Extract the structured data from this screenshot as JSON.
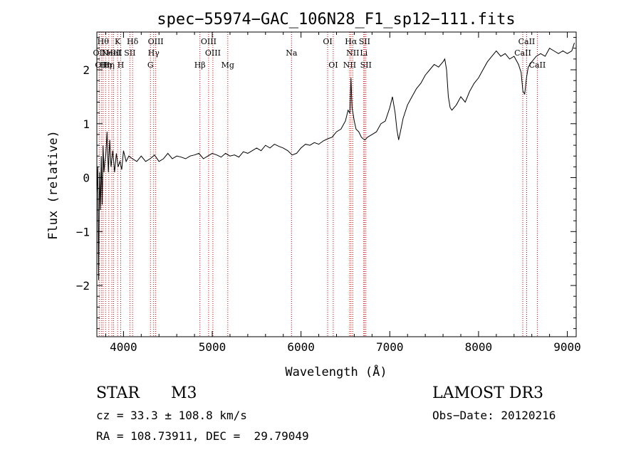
{
  "chart_data": {
    "type": "line",
    "title": "spec−55974−GAC_106N28_F1_sp12−111.fits",
    "xlabel": "Wavelength (Å)",
    "ylabel": "Flux (relative)",
    "xlim": [
      3700,
      9100
    ],
    "ylim": [
      -2.95,
      2.7
    ],
    "xticks": [
      4000,
      5000,
      6000,
      7000,
      8000,
      9000
    ],
    "xtick_labels": [
      "4000",
      "5000",
      "6000",
      "7000",
      "8000",
      "9000"
    ],
    "yticks": [
      -2,
      -1,
      0,
      1,
      2
    ],
    "ytick_labels": [
      "−2",
      "−1",
      "0",
      "1",
      "2"
    ],
    "line_color": "#000000",
    "line_marker_color": "#cc0000",
    "spectrum": {
      "name": "flux",
      "x": [
        3700,
        3710,
        3720,
        3730,
        3740,
        3750,
        3760,
        3770,
        3780,
        3790,
        3800,
        3815,
        3830,
        3845,
        3860,
        3880,
        3900,
        3920,
        3940,
        3960,
        3980,
        4000,
        4030,
        4060,
        4100,
        4150,
        4200,
        4250,
        4300,
        4350,
        4400,
        4450,
        4500,
        4550,
        4600,
        4650,
        4700,
        4750,
        4800,
        4850,
        4900,
        4950,
        5000,
        5050,
        5100,
        5150,
        5200,
        5250,
        5300,
        5350,
        5400,
        5450,
        5500,
        5550,
        5600,
        5650,
        5700,
        5750,
        5800,
        5850,
        5900,
        5950,
        6000,
        6050,
        6100,
        6150,
        6200,
        6250,
        6300,
        6350,
        6400,
        6450,
        6500,
        6530,
        6550,
        6563,
        6575,
        6600,
        6620,
        6650,
        6680,
        6700,
        6720,
        6750,
        6800,
        6850,
        6900,
        6950,
        7000,
        7030,
        7060,
        7080,
        7100,
        7120,
        7150,
        7200,
        7250,
        7300,
        7350,
        7400,
        7450,
        7500,
        7550,
        7600,
        7620,
        7640,
        7660,
        7680,
        7700,
        7750,
        7800,
        7850,
        7900,
        7950,
        8000,
        8050,
        8100,
        8150,
        8200,
        8250,
        8300,
        8350,
        8400,
        8450,
        8480,
        8500,
        8520,
        8540,
        8560,
        8600,
        8650,
        8700,
        8750,
        8800,
        8850,
        8900,
        8950,
        9000,
        9050,
        9080
      ],
      "y": [
        -0.3,
        0.2,
        -1.9,
        0.1,
        -0.6,
        0.4,
        -0.5,
        0.6,
        0.1,
        0.3,
        0.4,
        0.85,
        0.1,
        0.7,
        0.2,
        0.5,
        0.1,
        0.45,
        0.2,
        0.3,
        0.15,
        0.5,
        0.3,
        0.4,
        0.35,
        0.3,
        0.4,
        0.3,
        0.35,
        0.42,
        0.3,
        0.35,
        0.45,
        0.35,
        0.4,
        0.38,
        0.35,
        0.4,
        0.42,
        0.45,
        0.35,
        0.4,
        0.45,
        0.42,
        0.38,
        0.45,
        0.4,
        0.42,
        0.38,
        0.48,
        0.45,
        0.5,
        0.55,
        0.5,
        0.6,
        0.55,
        0.62,
        0.58,
        0.55,
        0.5,
        0.42,
        0.45,
        0.55,
        0.62,
        0.6,
        0.65,
        0.62,
        0.68,
        0.72,
        0.75,
        0.85,
        0.9,
        1.05,
        1.25,
        1.2,
        1.85,
        1.3,
        1.05,
        0.9,
        0.85,
        0.75,
        0.72,
        0.7,
        0.75,
        0.8,
        0.85,
        1.0,
        1.05,
        1.3,
        1.5,
        1.2,
        0.9,
        0.7,
        0.85,
        1.1,
        1.35,
        1.5,
        1.65,
        1.75,
        1.9,
        2.0,
        2.1,
        2.05,
        2.15,
        2.2,
        2.0,
        1.5,
        1.3,
        1.25,
        1.35,
        1.5,
        1.4,
        1.6,
        1.75,
        1.85,
        2.0,
        2.15,
        2.25,
        2.35,
        2.25,
        2.3,
        2.2,
        2.25,
        2.1,
        1.95,
        1.6,
        1.55,
        1.85,
        2.05,
        2.15,
        2.25,
        2.3,
        2.25,
        2.4,
        2.35,
        2.3,
        2.35,
        2.3,
        2.35,
        2.5
      ]
    },
    "line_markers": [
      {
        "x": 3727,
        "label": "OII",
        "row": 1
      },
      {
        "x": 3750,
        "label": "OII",
        "row": 2
      },
      {
        "x": 3770,
        "label": "Hθ",
        "row": 0
      },
      {
        "x": 3798,
        "label": "Hη",
        "row": 2
      },
      {
        "x": 3835,
        "label": "Hη",
        "row": 2
      },
      {
        "x": 3869,
        "label": "NeIII",
        "row": 1
      },
      {
        "x": 3889,
        "label": "HeI",
        "row": 1
      },
      {
        "x": 3934,
        "label": "K",
        "row": 0
      },
      {
        "x": 3969,
        "label": "H",
        "row": 2
      },
      {
        "x": 4072,
        "label": "SII",
        "row": 1
      },
      {
        "x": 4102,
        "label": "Hδ",
        "row": 0
      },
      {
        "x": 4304,
        "label": "G",
        "row": 2
      },
      {
        "x": 4340,
        "label": "Hγ",
        "row": 1
      },
      {
        "x": 4363,
        "label": "OIII",
        "row": 0
      },
      {
        "x": 4861,
        "label": "Hβ",
        "row": 2
      },
      {
        "x": 4959,
        "label": "OIII",
        "row": 0
      },
      {
        "x": 5007,
        "label": "OIII",
        "row": 1
      },
      {
        "x": 5175,
        "label": "Mg",
        "row": 2
      },
      {
        "x": 5893,
        "label": "Na",
        "row": 1
      },
      {
        "x": 6300,
        "label": "OI",
        "row": 0
      },
      {
        "x": 6363,
        "label": "OI",
        "row": 2
      },
      {
        "x": 6548,
        "label": "NII",
        "row": 2
      },
      {
        "x": 6563,
        "label": "Hα",
        "row": 0
      },
      {
        "x": 6583,
        "label": "NII",
        "row": 1
      },
      {
        "x": 6707,
        "label": "Li",
        "row": 1
      },
      {
        "x": 6716,
        "label": "SII",
        "row": 0
      },
      {
        "x": 6731,
        "label": "SII",
        "row": 2
      },
      {
        "x": 8498,
        "label": "CaII",
        "row": 1
      },
      {
        "x": 8542,
        "label": "CaII",
        "row": 0
      },
      {
        "x": 8662,
        "label": "CaII",
        "row": 2
      }
    ]
  },
  "info": {
    "object_class": "STAR",
    "subclass": "M3",
    "survey": "LAMOST DR3",
    "cz": "cz = 33.3 ± 108.8 km/s",
    "obs_date": "Obs−Date: 20120216",
    "coords": "RA = 108.73911, DEC =  29.79049"
  }
}
